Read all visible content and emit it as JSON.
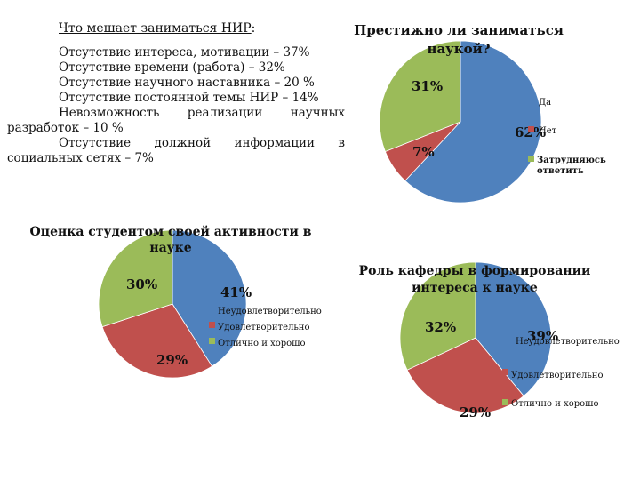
{
  "text_block": {
    "heading": "Что мешает заниматься НИР",
    "heading_colon": ":",
    "items": [
      "Отсутствие интереса, мотивации – 37%",
      "Отсутствие времени (работа) – 32%",
      "Отсутствие научного наставника – 20 %",
      "Отсутствие постоянной темы НИР – 14%"
    ],
    "item5_words": [
      "Невозможность",
      "реализации",
      "научных"
    ],
    "item5_cont": "разработок – 10 %",
    "item6_words": [
      "Отсутствие",
      "должной",
      "информации",
      "в"
    ],
    "item6_cont": "социальных сетях – 7%"
  },
  "colors": {
    "blue": "#4f81bd",
    "red": "#c0504d",
    "green": "#9bbb59"
  },
  "chart_data": [
    {
      "type": "pie",
      "title": [
        "Престижно ли заниматься",
        "наукой?"
      ],
      "categories": [
        "Да",
        "Нет",
        "Затрудняюсь ответить"
      ],
      "values": [
        62,
        7,
        31
      ],
      "data_labels": [
        "62%",
        "7%",
        "31%"
      ],
      "legend_position": "right"
    },
    {
      "type": "pie",
      "title": [
        "Оценка студентом своей активности в",
        "науке"
      ],
      "categories": [
        "Неудовлетворительно",
        "Удовлетворительно",
        "Отлично и хорошо"
      ],
      "values": [
        41,
        29,
        30
      ],
      "data_labels": [
        "41%",
        "29%",
        "30%"
      ],
      "legend_position": "right"
    },
    {
      "type": "pie",
      "title": [
        "Роль кафедры в формировании",
        "интереса к науке"
      ],
      "categories": [
        "Неудовлетворительно",
        "Удовлетворительно",
        "Отлично и хорошо"
      ],
      "values": [
        39,
        29,
        32
      ],
      "data_labels": [
        "39%",
        "29%",
        "32%"
      ],
      "legend_position": "right"
    }
  ]
}
